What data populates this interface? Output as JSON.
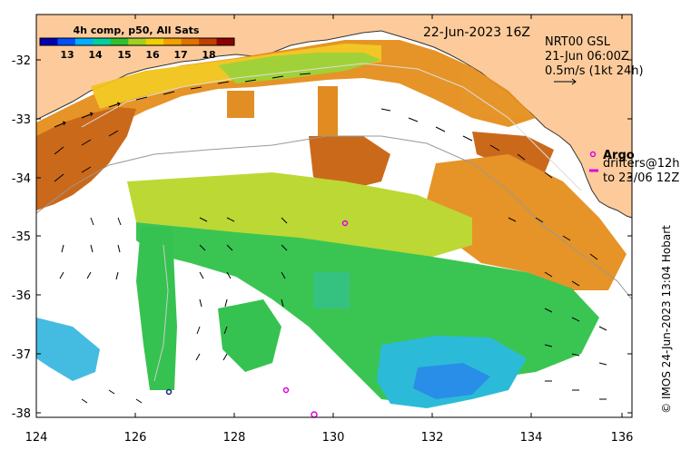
{
  "colorbar": {
    "title": "4h comp, p50, All Sats",
    "ticks": [
      "13",
      "14",
      "15",
      "16",
      "17",
      "18"
    ],
    "colors": [
      "#0000b0",
      "#0050ff",
      "#00b0ff",
      "#00d0a0",
      "#30c030",
      "#a0d020",
      "#f0d000",
      "#f0a000",
      "#e07000",
      "#c04000",
      "#900000"
    ]
  },
  "timestamp": "22-Jun-2023 16Z",
  "vector_info": {
    "source": "NRT00 GSL",
    "time": "21-Jun 06:00Z",
    "scale": "0.5m/s (1kt 24h)"
  },
  "legend": {
    "argo": "Argo",
    "drifters_line1": "drifters@12h",
    "drifters_line2": "to 23/06 12Z"
  },
  "credit": "© IMOS 24-Jun-2023 13:04 Hobart",
  "axes": {
    "x_ticks": [
      "124",
      "126",
      "128",
      "130",
      "132",
      "134",
      "136"
    ],
    "y_ticks": [
      "-32",
      "-33",
      "-34",
      "-35",
      "-36",
      "-37",
      "-38"
    ]
  },
  "colors": {
    "land": "#fdcb9b",
    "warm": "#e08a1a",
    "hot": "#c9620f",
    "mid": "#b8d82a",
    "cool": "#30c84a",
    "cold": "#20b8d0",
    "marker": "#e000e0"
  }
}
